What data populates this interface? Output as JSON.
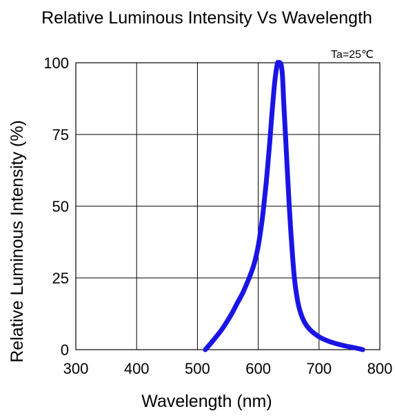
{
  "chart_data": {
    "type": "line",
    "title": "Relative Luminous Intensity Vs Wavelength",
    "xlabel": "Wavelength (nm)",
    "ylabel": "Relative Luminous Intensity (%)",
    "annotation": "Ta=25℃",
    "xlim": [
      300,
      800
    ],
    "ylim": [
      0,
      100
    ],
    "x_ticks": [
      300,
      400,
      500,
      600,
      700,
      800
    ],
    "y_ticks": [
      0,
      25,
      50,
      75,
      100
    ],
    "x_tick_labels": [
      "300",
      "400",
      "500",
      "600",
      "700",
      "800"
    ],
    "y_tick_labels": [
      "0",
      "25",
      "50",
      "75",
      "100"
    ],
    "grid": true,
    "legend": "none",
    "series": [
      {
        "color": "#1a14e6",
        "x": [
          513,
          525,
          540,
          555,
          565,
          575,
          585,
          592,
          598,
          603,
          608,
          613,
          618,
          621,
          624,
          627,
          630,
          632,
          634,
          636,
          638,
          640,
          642,
          645,
          648,
          651,
          654,
          657,
          660,
          664,
          668,
          675,
          685,
          700,
          715,
          730,
          745,
          760,
          772
        ],
        "y": [
          0,
          3,
          7,
          12,
          16,
          20,
          25,
          29,
          34,
          40,
          48,
          58,
          70,
          78,
          86,
          93,
          98,
          100,
          100,
          100,
          99,
          95,
          86,
          74,
          62,
          50,
          40,
          31,
          24,
          18,
          14,
          10,
          7,
          4.5,
          3,
          2,
          1.2,
          0.6,
          0
        ]
      }
    ]
  }
}
